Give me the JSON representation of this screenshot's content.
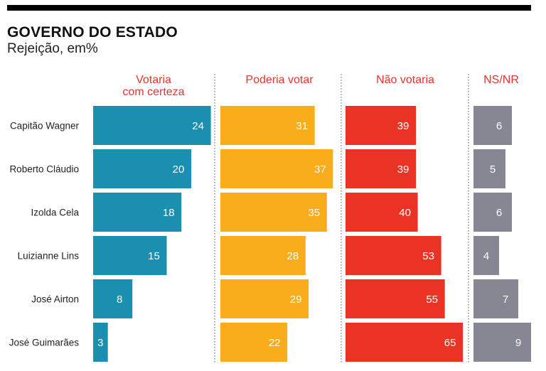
{
  "header": {
    "title": "GOVERNO DO ESTADO",
    "subtitle": "Rejeição, em%"
  },
  "chart_data": {
    "type": "bar",
    "title": "GOVERNO DO ESTADO",
    "subtitle": "Rejeição, em%",
    "categories": [
      "Capitão Wagner",
      "Roberto Cláudio",
      "Izolda Cela",
      "Luizianne Lins",
      "José Airton",
      "José Guimarães"
    ],
    "series": [
      {
        "name": "Votaria com certeza",
        "header_lines": [
          "Votaria",
          "com certeza"
        ],
        "color": "#1a8fb0",
        "header_color": "#e8332a",
        "values": [
          24,
          20,
          18,
          15,
          8,
          3
        ]
      },
      {
        "name": "Poderia votar",
        "header_lines": [
          "Poderia votar"
        ],
        "color": "#f9ad1a",
        "header_color": "#e8332a",
        "values": [
          31,
          37,
          35,
          28,
          29,
          22
        ]
      },
      {
        "name": "Não votaria",
        "header_lines": [
          "Não votaria"
        ],
        "color": "#ea3225",
        "header_color": "#e8332a",
        "values": [
          39,
          39,
          40,
          53,
          55,
          65
        ]
      },
      {
        "name": "NS/NR",
        "header_lines": [
          "NS/NR"
        ],
        "color": "#868792",
        "header_color": "#e8332a",
        "values": [
          6,
          5,
          6,
          4,
          7,
          9
        ]
      }
    ],
    "units": "%"
  }
}
